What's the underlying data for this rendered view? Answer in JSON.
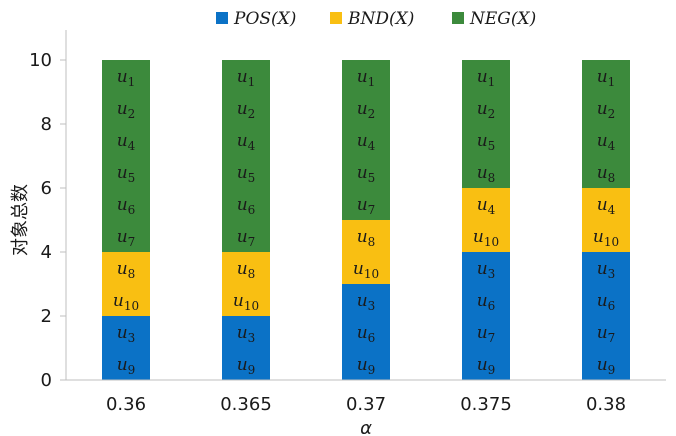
{
  "chart_data": {
    "type": "bar",
    "stacked": true,
    "categories": [
      "0.36",
      "0.365",
      "0.37",
      "0.375",
      "0.38"
    ],
    "series": [
      {
        "name": "POS(X)",
        "color": "#0b72c6",
        "values": [
          2,
          2,
          3,
          4,
          4
        ],
        "members": [
          [
            "u3",
            "u9"
          ],
          [
            "u3",
            "u9"
          ],
          [
            "u3",
            "u6",
            "u9"
          ],
          [
            "u3",
            "u6",
            "u7",
            "u9"
          ],
          [
            "u3",
            "u6",
            "u7",
            "u9"
          ]
        ]
      },
      {
        "name": "BND(X)",
        "color": "#f9bf12",
        "values": [
          2,
          2,
          2,
          2,
          2
        ],
        "members": [
          [
            "u8",
            "u10"
          ],
          [
            "u8",
            "u10"
          ],
          [
            "u8",
            "u10"
          ],
          [
            "u4",
            "u10"
          ],
          [
            "u4",
            "u10"
          ]
        ]
      },
      {
        "name": "NEG(X)",
        "color": "#3c8a3c",
        "values": [
          6,
          6,
          5,
          4,
          4
        ],
        "members": [
          [
            "u1",
            "u2",
            "u4",
            "u5",
            "u6",
            "u7"
          ],
          [
            "u1",
            "u2",
            "u4",
            "u5",
            "u6",
            "u7"
          ],
          [
            "u1",
            "u2",
            "u4",
            "u5",
            "u7"
          ],
          [
            "u1",
            "u2",
            "u5",
            "u8"
          ],
          [
            "u1",
            "u2",
            "u4",
            "u8"
          ]
        ]
      }
    ],
    "xlabel": "α",
    "ylabel": "对象总数",
    "ylim": [
      0,
      10
    ],
    "yticks": [
      0,
      2,
      4,
      6,
      8,
      10
    ],
    "legend_position": "top",
    "grid": false
  }
}
